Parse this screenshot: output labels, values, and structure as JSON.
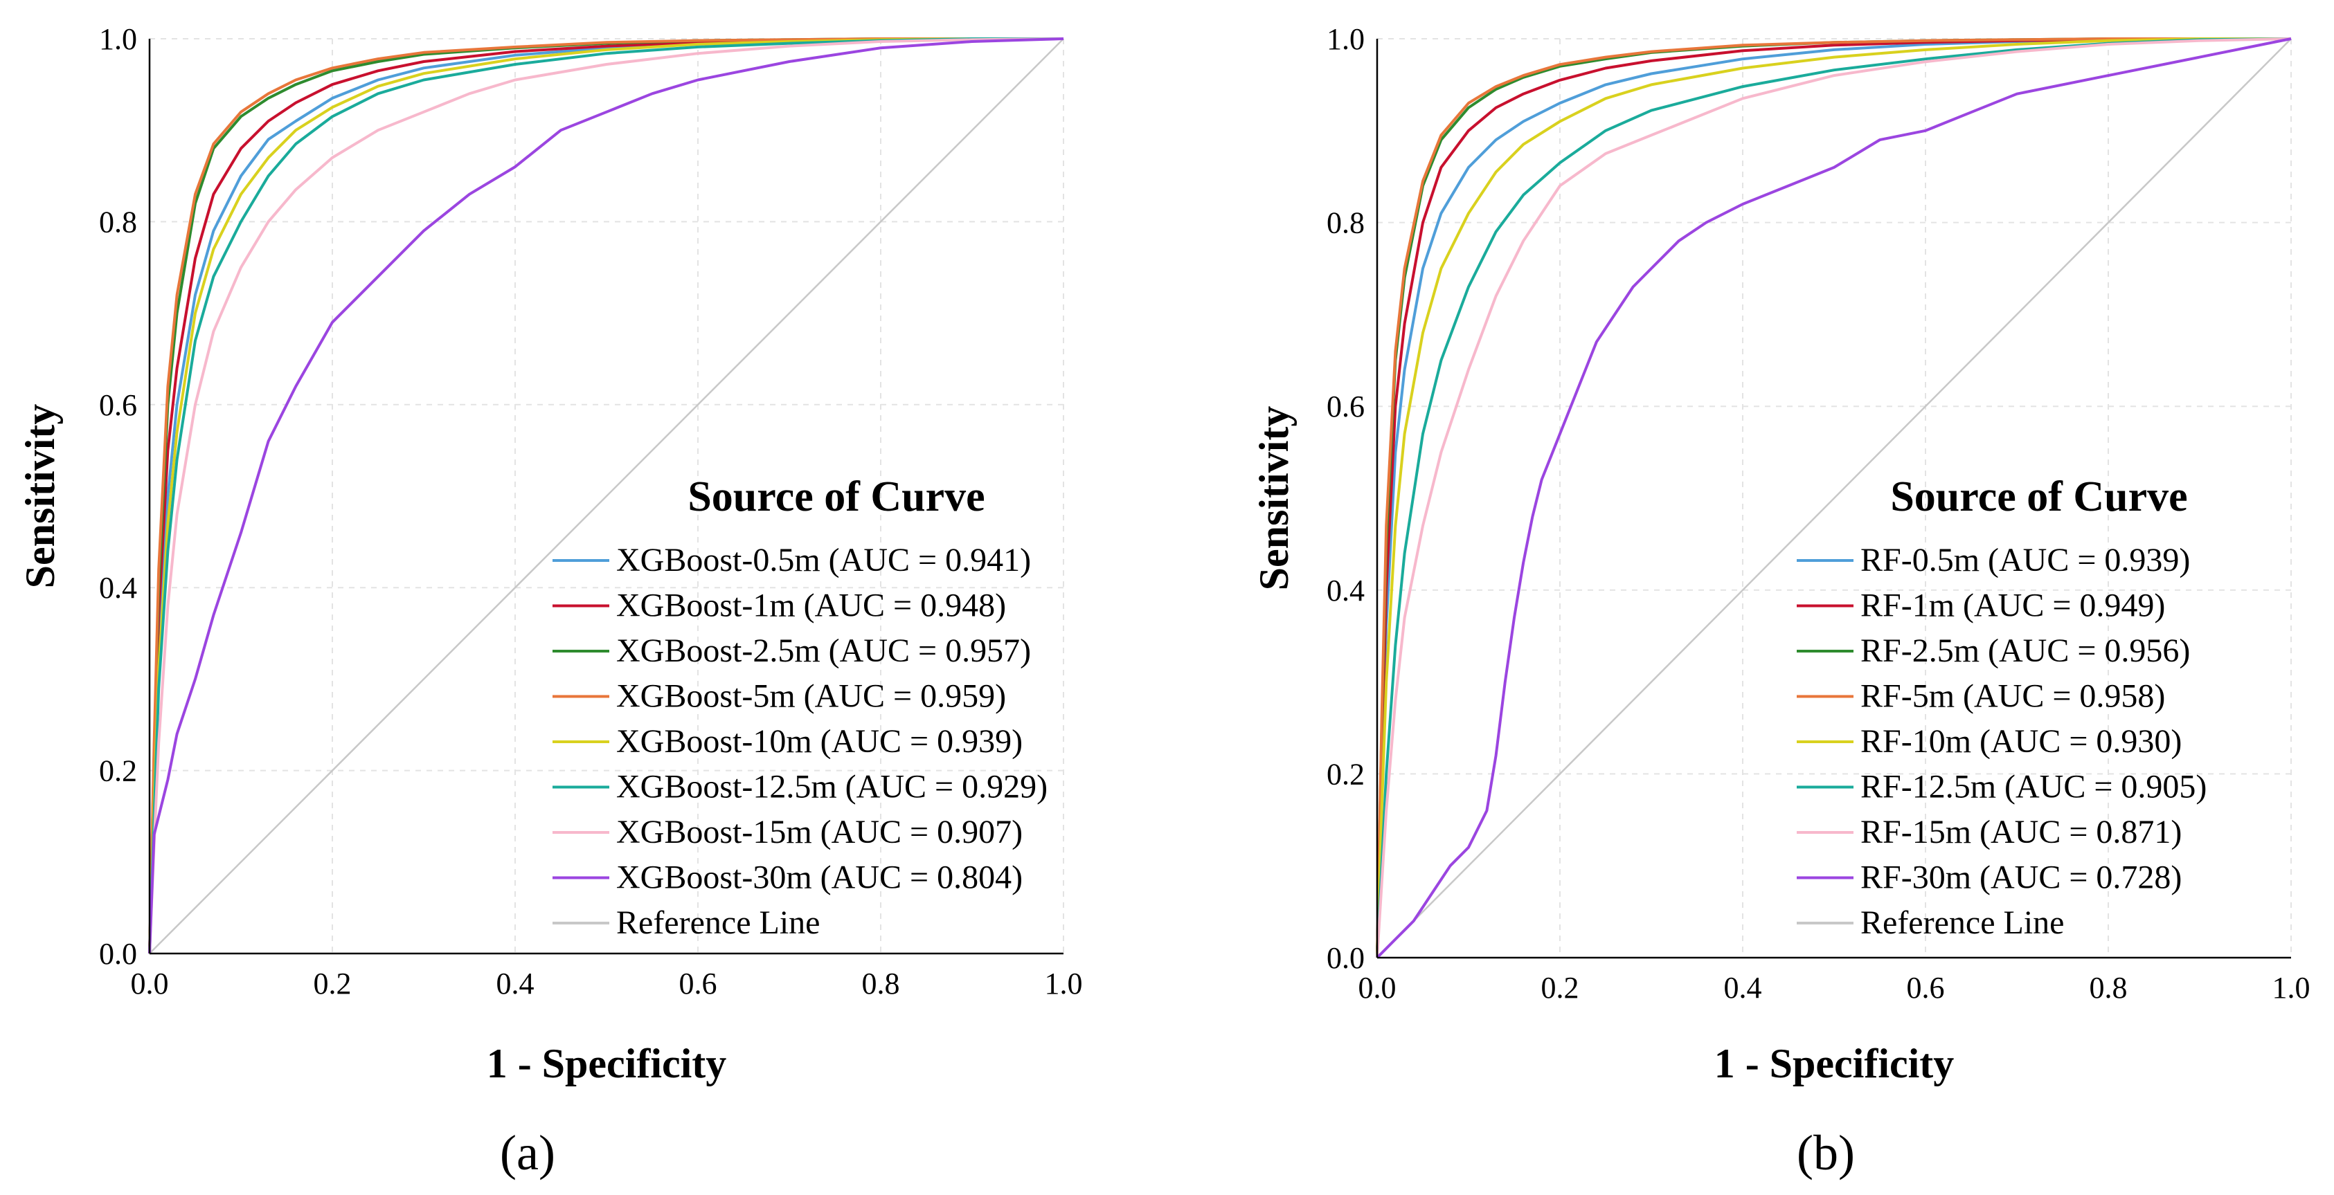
{
  "chart_data": [
    {
      "type": "line",
      "panel_label": "(a)",
      "xlabel": "1 - Specificity",
      "ylabel": "Sensitivity",
      "xlim": [
        0,
        1
      ],
      "ylim": [
        0,
        1
      ],
      "ticks": [
        "0.0",
        "0.2",
        "0.4",
        "0.6",
        "0.8",
        "1.0"
      ],
      "grid": true,
      "legend_title": "Source of Curve",
      "legend_position": "bottom-right",
      "series": [
        {
          "name": "XGBoost-0.5m (AUC = 0.941)",
          "auc": 0.941,
          "color": "#4f9ed9",
          "x": [
            0,
            0.005,
            0.01,
            0.02,
            0.03,
            0.05,
            0.07,
            0.1,
            0.13,
            0.16,
            0.2,
            0.25,
            0.3,
            0.4,
            0.5,
            0.6,
            0.7,
            0.8,
            0.9,
            1.0
          ],
          "y": [
            0,
            0.18,
            0.33,
            0.5,
            0.6,
            0.72,
            0.79,
            0.85,
            0.89,
            0.91,
            0.935,
            0.955,
            0.968,
            0.982,
            0.99,
            0.995,
            0.997,
            0.999,
            1.0,
            1.0
          ]
        },
        {
          "name": "XGBoost-1m (AUC = 0.948)",
          "auc": 0.948,
          "color": "#c8102e",
          "x": [
            0,
            0.005,
            0.01,
            0.02,
            0.03,
            0.05,
            0.07,
            0.1,
            0.13,
            0.16,
            0.2,
            0.25,
            0.3,
            0.4,
            0.5,
            0.6,
            0.7,
            0.8,
            0.9,
            1.0
          ],
          "y": [
            0,
            0.2,
            0.37,
            0.55,
            0.64,
            0.76,
            0.83,
            0.88,
            0.91,
            0.93,
            0.95,
            0.965,
            0.975,
            0.986,
            0.992,
            0.996,
            0.998,
            0.999,
            1.0,
            1.0
          ]
        },
        {
          "name": "XGBoost-2.5m (AUC = 0.957)",
          "auc": 0.957,
          "color": "#2e8b2e",
          "x": [
            0,
            0.005,
            0.01,
            0.02,
            0.03,
            0.05,
            0.07,
            0.1,
            0.13,
            0.16,
            0.2,
            0.25,
            0.3,
            0.4,
            0.5,
            0.6,
            0.7,
            0.8,
            0.9,
            1.0
          ],
          "y": [
            0,
            0.22,
            0.4,
            0.6,
            0.7,
            0.82,
            0.88,
            0.915,
            0.935,
            0.95,
            0.965,
            0.975,
            0.983,
            0.99,
            0.995,
            0.998,
            0.999,
            1.0,
            1.0,
            1.0
          ]
        },
        {
          "name": "XGBoost-5m (AUC = 0.959)",
          "auc": 0.959,
          "color": "#e8763a",
          "x": [
            0,
            0.005,
            0.01,
            0.02,
            0.03,
            0.05,
            0.07,
            0.1,
            0.13,
            0.16,
            0.2,
            0.25,
            0.3,
            0.4,
            0.5,
            0.6,
            0.7,
            0.8,
            0.9,
            1.0
          ],
          "y": [
            0,
            0.23,
            0.42,
            0.62,
            0.72,
            0.83,
            0.885,
            0.92,
            0.94,
            0.955,
            0.968,
            0.978,
            0.985,
            0.991,
            0.996,
            0.998,
            0.999,
            1.0,
            1.0,
            1.0
          ]
        },
        {
          "name": "XGBoost-10m (AUC = 0.939)",
          "auc": 0.939,
          "color": "#d9d11e",
          "x": [
            0,
            0.005,
            0.01,
            0.02,
            0.03,
            0.05,
            0.07,
            0.1,
            0.13,
            0.16,
            0.2,
            0.25,
            0.3,
            0.4,
            0.5,
            0.6,
            0.7,
            0.8,
            0.9,
            1.0
          ],
          "y": [
            0,
            0.17,
            0.31,
            0.47,
            0.57,
            0.7,
            0.77,
            0.83,
            0.87,
            0.9,
            0.925,
            0.948,
            0.962,
            0.978,
            0.988,
            0.994,
            0.997,
            0.999,
            1.0,
            1.0
          ]
        },
        {
          "name": "XGBoost-12.5m (AUC = 0.929)",
          "auc": 0.929,
          "color": "#1aab9b",
          "x": [
            0,
            0.005,
            0.01,
            0.02,
            0.03,
            0.05,
            0.07,
            0.1,
            0.13,
            0.16,
            0.2,
            0.25,
            0.3,
            0.4,
            0.5,
            0.6,
            0.7,
            0.8,
            0.9,
            1.0
          ],
          "y": [
            0,
            0.15,
            0.29,
            0.44,
            0.54,
            0.67,
            0.74,
            0.8,
            0.85,
            0.885,
            0.915,
            0.94,
            0.955,
            0.972,
            0.984,
            0.991,
            0.995,
            0.998,
            1.0,
            1.0
          ]
        },
        {
          "name": "XGBoost-15m (AUC = 0.907)",
          "auc": 0.907,
          "color": "#f7b8cc",
          "x": [
            0,
            0.005,
            0.01,
            0.02,
            0.03,
            0.05,
            0.07,
            0.1,
            0.13,
            0.16,
            0.2,
            0.25,
            0.3,
            0.35,
            0.4,
            0.5,
            0.6,
            0.7,
            0.8,
            0.9,
            1.0
          ],
          "y": [
            0,
            0.12,
            0.23,
            0.38,
            0.48,
            0.6,
            0.68,
            0.75,
            0.8,
            0.835,
            0.87,
            0.9,
            0.92,
            0.94,
            0.955,
            0.972,
            0.984,
            0.992,
            0.997,
            0.999,
            1.0
          ]
        },
        {
          "name": "XGBoost-30m (AUC = 0.804)",
          "auc": 0.804,
          "color": "#9b45e0",
          "x": [
            0,
            0.005,
            0.01,
            0.02,
            0.03,
            0.05,
            0.07,
            0.1,
            0.13,
            0.16,
            0.2,
            0.25,
            0.3,
            0.35,
            0.4,
            0.45,
            0.5,
            0.55,
            0.6,
            0.7,
            0.8,
            0.9,
            1.0
          ],
          "y": [
            0,
            0.13,
            0.15,
            0.19,
            0.24,
            0.3,
            0.37,
            0.46,
            0.56,
            0.62,
            0.69,
            0.74,
            0.79,
            0.83,
            0.86,
            0.9,
            0.92,
            0.94,
            0.955,
            0.975,
            0.99,
            0.997,
            1.0
          ]
        }
      ],
      "reference": {
        "name": "Reference Line",
        "color": "#c8c8c8",
        "x": [
          0,
          1
        ],
        "y": [
          0,
          1
        ]
      }
    },
    {
      "type": "line",
      "panel_label": "(b)",
      "xlabel": "1 - Specificity",
      "ylabel": "Sensitivity",
      "xlim": [
        0,
        1
      ],
      "ylim": [
        0,
        1
      ],
      "ticks": [
        "0.0",
        "0.2",
        "0.4",
        "0.6",
        "0.8",
        "1.0"
      ],
      "grid": true,
      "legend_title": "Source of Curve",
      "legend_position": "bottom-right",
      "series": [
        {
          "name": "RF-0.5m (AUC = 0.939)",
          "auc": 0.939,
          "color": "#4f9ed9",
          "x": [
            0,
            0.005,
            0.01,
            0.02,
            0.03,
            0.05,
            0.07,
            0.1,
            0.13,
            0.16,
            0.2,
            0.25,
            0.3,
            0.4,
            0.5,
            0.6,
            0.7,
            0.8,
            0.9,
            1.0
          ],
          "y": [
            0,
            0.2,
            0.36,
            0.55,
            0.64,
            0.75,
            0.81,
            0.86,
            0.89,
            0.91,
            0.93,
            0.95,
            0.962,
            0.978,
            0.988,
            0.994,
            0.997,
            0.999,
            1.0,
            1.0
          ]
        },
        {
          "name": "RF-1m (AUC = 0.949)",
          "auc": 0.949,
          "color": "#c8102e",
          "x": [
            0,
            0.005,
            0.01,
            0.02,
            0.03,
            0.05,
            0.07,
            0.1,
            0.13,
            0.16,
            0.2,
            0.25,
            0.3,
            0.4,
            0.5,
            0.6,
            0.7,
            0.8,
            0.9,
            1.0
          ],
          "y": [
            0,
            0.22,
            0.4,
            0.6,
            0.69,
            0.8,
            0.86,
            0.9,
            0.925,
            0.94,
            0.955,
            0.968,
            0.976,
            0.987,
            0.993,
            0.996,
            0.998,
            0.999,
            1.0,
            1.0
          ]
        },
        {
          "name": "RF-2.5m (AUC = 0.956)",
          "auc": 0.956,
          "color": "#2e8b2e",
          "x": [
            0,
            0.005,
            0.01,
            0.02,
            0.03,
            0.05,
            0.07,
            0.1,
            0.13,
            0.16,
            0.2,
            0.25,
            0.3,
            0.4,
            0.5,
            0.6,
            0.7,
            0.8,
            0.9,
            1.0
          ],
          "y": [
            0,
            0.25,
            0.45,
            0.65,
            0.74,
            0.84,
            0.89,
            0.925,
            0.945,
            0.958,
            0.97,
            0.978,
            0.985,
            0.992,
            0.996,
            0.998,
            0.999,
            1.0,
            1.0,
            1.0
          ]
        },
        {
          "name": "RF-5m (AUC = 0.958)",
          "auc": 0.958,
          "color": "#e8763a",
          "x": [
            0,
            0.005,
            0.01,
            0.02,
            0.03,
            0.05,
            0.07,
            0.1,
            0.13,
            0.16,
            0.2,
            0.25,
            0.3,
            0.4,
            0.5,
            0.6,
            0.7,
            0.8,
            0.9,
            1.0
          ],
          "y": [
            0,
            0.26,
            0.47,
            0.66,
            0.75,
            0.845,
            0.895,
            0.93,
            0.948,
            0.96,
            0.972,
            0.98,
            0.986,
            0.993,
            0.996,
            0.998,
            0.999,
            1.0,
            1.0,
            1.0
          ]
        },
        {
          "name": "RF-10m (AUC = 0.930)",
          "auc": 0.93,
          "color": "#d9d11e",
          "x": [
            0,
            0.005,
            0.01,
            0.02,
            0.03,
            0.05,
            0.07,
            0.1,
            0.13,
            0.16,
            0.2,
            0.25,
            0.3,
            0.4,
            0.5,
            0.6,
            0.7,
            0.8,
            0.9,
            1.0
          ],
          "y": [
            0,
            0.16,
            0.3,
            0.47,
            0.57,
            0.68,
            0.75,
            0.81,
            0.855,
            0.885,
            0.91,
            0.935,
            0.95,
            0.968,
            0.98,
            0.988,
            0.994,
            0.998,
            1.0,
            1.0
          ]
        },
        {
          "name": "RF-12.5m (AUC = 0.905)",
          "auc": 0.905,
          "color": "#1aab9b",
          "x": [
            0,
            0.005,
            0.01,
            0.02,
            0.03,
            0.05,
            0.07,
            0.1,
            0.13,
            0.16,
            0.2,
            0.25,
            0.3,
            0.4,
            0.5,
            0.6,
            0.7,
            0.8,
            0.9,
            1.0
          ],
          "y": [
            0,
            0.1,
            0.2,
            0.34,
            0.44,
            0.57,
            0.65,
            0.73,
            0.79,
            0.83,
            0.865,
            0.9,
            0.922,
            0.948,
            0.966,
            0.978,
            0.988,
            0.995,
            0.999,
            1.0
          ]
        },
        {
          "name": "RF-15m (AUC = 0.871)",
          "auc": 0.871,
          "color": "#f7b8cc",
          "x": [
            0,
            0.005,
            0.01,
            0.02,
            0.03,
            0.05,
            0.07,
            0.1,
            0.13,
            0.16,
            0.2,
            0.25,
            0.3,
            0.35,
            0.4,
            0.5,
            0.6,
            0.7,
            0.8,
            0.9,
            1.0
          ],
          "y": [
            0,
            0.08,
            0.16,
            0.28,
            0.37,
            0.47,
            0.55,
            0.64,
            0.72,
            0.78,
            0.84,
            0.875,
            0.895,
            0.915,
            0.935,
            0.96,
            0.975,
            0.986,
            0.994,
            0.998,
            1.0
          ]
        },
        {
          "name": "RF-30m (AUC = 0.728)",
          "auc": 0.728,
          "color": "#9b45e0",
          "x": [
            0,
            0.01,
            0.02,
            0.04,
            0.06,
            0.08,
            0.1,
            0.11,
            0.12,
            0.13,
            0.14,
            0.15,
            0.16,
            0.17,
            0.18,
            0.2,
            0.22,
            0.24,
            0.26,
            0.28,
            0.3,
            0.33,
            0.36,
            0.4,
            0.45,
            0.5,
            0.55,
            0.6,
            0.65,
            0.7,
            0.8,
            0.9,
            1.0
          ],
          "y": [
            0,
            0.01,
            0.02,
            0.04,
            0.07,
            0.1,
            0.12,
            0.14,
            0.16,
            0.22,
            0.3,
            0.37,
            0.43,
            0.48,
            0.52,
            0.57,
            0.62,
            0.67,
            0.7,
            0.73,
            0.75,
            0.78,
            0.8,
            0.82,
            0.84,
            0.86,
            0.89,
            0.9,
            0.92,
            0.94,
            0.96,
            0.98,
            1.0
          ]
        }
      ],
      "reference": {
        "name": "Reference Line",
        "color": "#c8c8c8",
        "x": [
          0,
          1
        ],
        "y": [
          0,
          1
        ]
      }
    }
  ]
}
